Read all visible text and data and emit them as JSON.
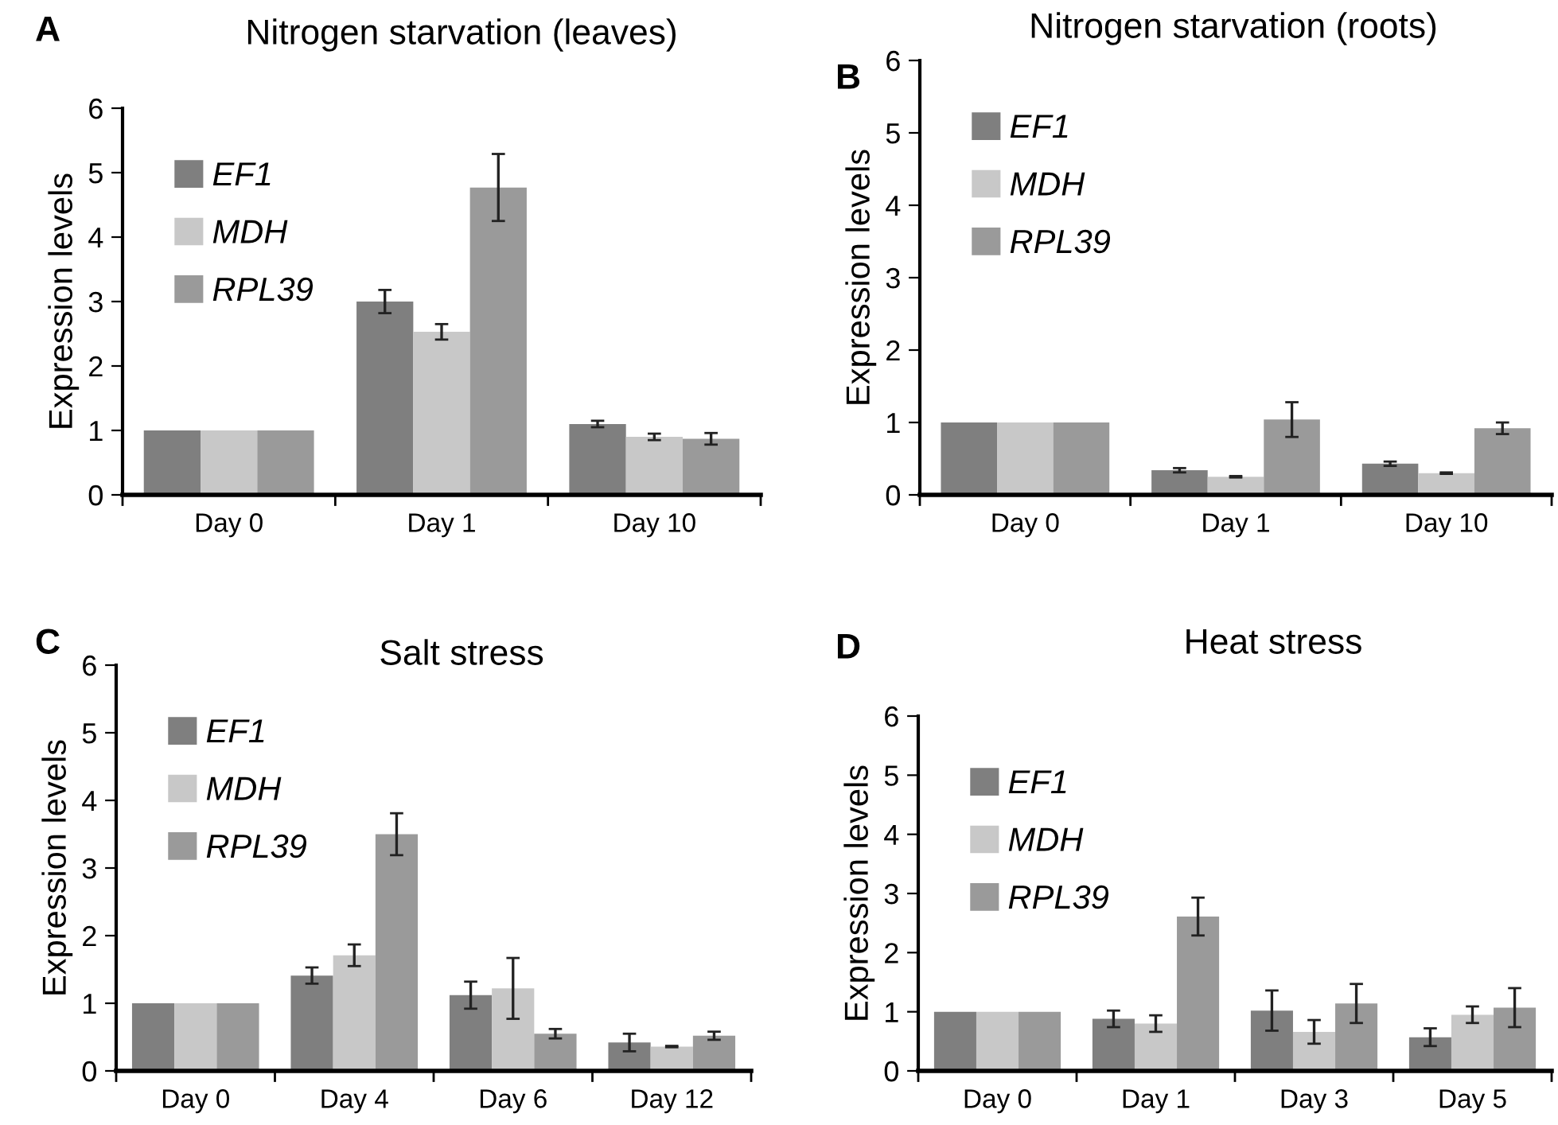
{
  "chart_data": [
    {
      "type": "bar",
      "title": "Nitrogen starvation (leaves)",
      "ylabel": "Expression levels",
      "annotations": [
        "A"
      ],
      "categories": [
        "Day 0",
        "Day 1",
        "Day 10"
      ],
      "ylim": [
        0,
        6
      ],
      "yticks": [
        0,
        1,
        2,
        3,
        4,
        5,
        6
      ],
      "legend": "top left",
      "grid": false,
      "series": [
        {
          "name": "EF1",
          "color": "#7f7f7f",
          "values": [
            1,
            3.0,
            1.1
          ],
          "errors": [
            null,
            0.18,
            0.05
          ]
        },
        {
          "name": "MDH",
          "color": "#c8c8c8",
          "values": [
            1,
            2.53,
            0.9
          ],
          "errors": [
            null,
            0.12,
            0.05
          ]
        },
        {
          "name": "RPL39",
          "color": "#9a9a9a",
          "values": [
            1,
            4.77,
            0.87
          ],
          "errors": [
            null,
            0.52,
            0.09
          ]
        }
      ]
    },
    {
      "type": "bar",
      "title": "Nitrogen starvation (roots)",
      "ylabel": "Expression levels",
      "annotations": [
        "B"
      ],
      "categories": [
        "Day 0",
        "Day 1",
        "Day 10"
      ],
      "ylim": [
        0,
        6
      ],
      "yticks": [
        0,
        1,
        2,
        3,
        4,
        5,
        6
      ],
      "legend": "top left",
      "grid": false,
      "series": [
        {
          "name": "EF1",
          "color": "#7f7f7f",
          "values": [
            1,
            0.34,
            0.43
          ],
          "errors": [
            null,
            0.03,
            0.03
          ]
        },
        {
          "name": "MDH",
          "color": "#c8c8c8",
          "values": [
            1,
            0.25,
            0.3
          ],
          "errors": [
            null,
            0.01,
            0.01
          ]
        },
        {
          "name": "RPL39",
          "color": "#9a9a9a",
          "values": [
            1,
            1.04,
            0.92
          ],
          "errors": [
            null,
            0.24,
            0.08
          ]
        }
      ]
    },
    {
      "type": "bar",
      "title": "Salt stress",
      "ylabel": "Expression levels",
      "annotations": [
        "C"
      ],
      "categories": [
        "Day 0",
        "Day 4",
        "Day 6",
        "Day 12"
      ],
      "ylim": [
        0,
        6
      ],
      "yticks": [
        0,
        1,
        2,
        3,
        4,
        5,
        6
      ],
      "legend": "top left",
      "grid": false,
      "series": [
        {
          "name": "EF1",
          "color": "#7f7f7f",
          "values": [
            1,
            1.41,
            1.12,
            0.42
          ],
          "errors": [
            null,
            0.12,
            0.2,
            0.13
          ]
        },
        {
          "name": "MDH",
          "color": "#c8c8c8",
          "values": [
            1,
            1.71,
            1.22,
            0.36
          ],
          "errors": [
            null,
            0.16,
            0.45,
            0.01
          ]
        },
        {
          "name": "RPL39",
          "color": "#9a9a9a",
          "values": [
            1,
            3.5,
            0.55,
            0.52
          ],
          "errors": [
            null,
            0.31,
            0.07,
            0.06
          ]
        }
      ]
    },
    {
      "type": "bar",
      "title": "Heat stress",
      "ylabel": "Expression levels",
      "annotations": [
        "D"
      ],
      "categories": [
        "Day 0",
        "Day 1",
        "Day 3",
        "Day 5"
      ],
      "ylim": [
        0,
        6
      ],
      "yticks": [
        0,
        1,
        2,
        3,
        4,
        5,
        6
      ],
      "legend": "top left",
      "grid": false,
      "series": [
        {
          "name": "EF1",
          "color": "#7f7f7f",
          "values": [
            1,
            0.88,
            1.02,
            0.57
          ],
          "errors": [
            null,
            0.14,
            0.34,
            0.15
          ]
        },
        {
          "name": "MDH",
          "color": "#c8c8c8",
          "values": [
            1,
            0.8,
            0.66,
            0.95
          ],
          "errors": [
            null,
            0.14,
            0.2,
            0.14
          ]
        },
        {
          "name": "RPL39",
          "color": "#9a9a9a",
          "values": [
            1,
            2.61,
            1.14,
            1.07
          ],
          "errors": [
            null,
            0.32,
            0.33,
            0.33
          ]
        }
      ]
    }
  ]
}
